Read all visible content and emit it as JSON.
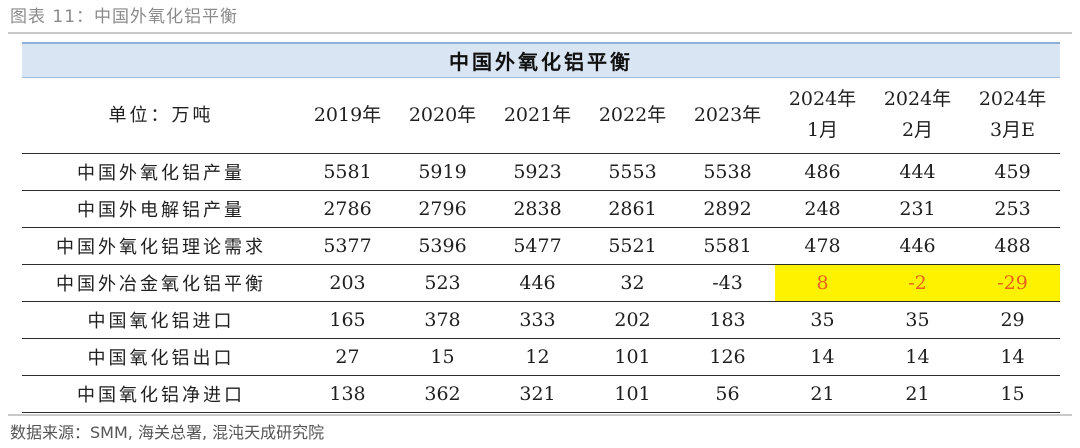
{
  "caption": "图表 11：中国外氧化铝平衡",
  "table": {
    "title": "中国外氧化铝平衡",
    "unit_label": "单位：万吨",
    "columns": [
      {
        "line1": "2019年",
        "line2": ""
      },
      {
        "line1": "2020年",
        "line2": ""
      },
      {
        "line1": "2021年",
        "line2": ""
      },
      {
        "line1": "2022年",
        "line2": ""
      },
      {
        "line1": "2023年",
        "line2": ""
      },
      {
        "line1": "2024年",
        "line2": "1月"
      },
      {
        "line1": "2024年",
        "line2": "2月"
      },
      {
        "line1": "2024年",
        "line2": "3月E"
      }
    ],
    "rows": [
      {
        "label": "中国外氧化铝产量",
        "values": [
          "5581",
          "5919",
          "5923",
          "5553",
          "5538",
          "486",
          "444",
          "459"
        ]
      },
      {
        "label": "中国外电解铝产量",
        "values": [
          "2786",
          "2796",
          "2838",
          "2861",
          "2892",
          "248",
          "231",
          "253"
        ]
      },
      {
        "label": "中国外氧化铝理论需求",
        "values": [
          "5377",
          "5396",
          "5477",
          "5521",
          "5581",
          "478",
          "446",
          "488"
        ]
      },
      {
        "label": "中国外冶金氧化铝平衡",
        "values": [
          "203",
          "523",
          "446",
          "32",
          "-43",
          "8",
          "-2",
          "-29"
        ]
      },
      {
        "label": "中国氧化铝进口",
        "values": [
          "165",
          "378",
          "333",
          "202",
          "183",
          "35",
          "35",
          "29"
        ]
      },
      {
        "label": "中国氧化铝出口",
        "values": [
          "27",
          "15",
          "12",
          "101",
          "126",
          "14",
          "14",
          "14"
        ]
      },
      {
        "label": "中国氧化铝净进口",
        "values": [
          "138",
          "362",
          "321",
          "101",
          "56",
          "21",
          "21",
          "15"
        ]
      }
    ],
    "highlight": {
      "row": 3,
      "from_col": 5,
      "to_col": 7,
      "bg": "#fff200",
      "text_color": "#e8621a"
    }
  },
  "source": "数据来源：SMM, 海关总署, 混沌天成研究院"
}
